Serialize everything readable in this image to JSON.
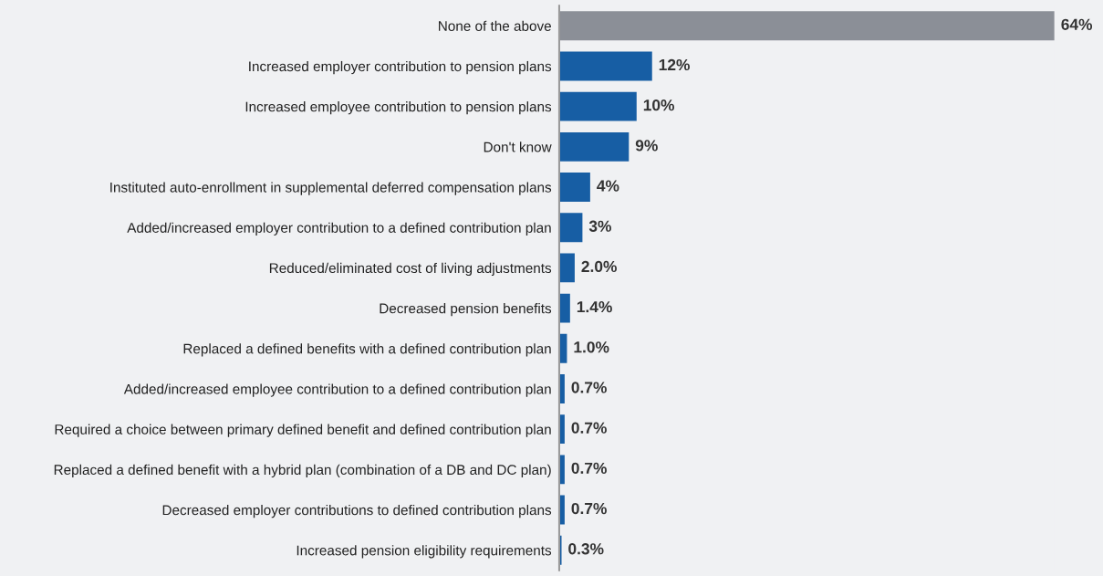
{
  "chart_data": {
    "type": "bar",
    "orientation": "horizontal",
    "categories": [
      "None of the above",
      "Increased employer contribution to pension plans",
      "Increased employee contribution to pension plans",
      "Don't know",
      "Instituted auto-enrollment in supplemental deferred compensation plans",
      "Added/increased employer contribution to a defined contribution plan",
      "Reduced/eliminated cost of living adjustments",
      "Decreased pension benefits",
      "Replaced a defined benefits with a defined contribution plan",
      "Added/increased employee contribution to a defined contribution plan",
      "Required a choice between primary defined benefit and defined contribution plan",
      "Replaced a defined benefit with a hybrid plan (combination of a DB and DC plan)",
      "Decreased employer contributions to defined contribution plans",
      "Increased pension eligibility requirements"
    ],
    "values": [
      64,
      12,
      10,
      9,
      4,
      3,
      2.0,
      1.4,
      1.0,
      0.7,
      0.7,
      0.7,
      0.7,
      0.3
    ],
    "value_labels": [
      "64%",
      "12%",
      "10%",
      "9%",
      "4%",
      "3%",
      "2.0%",
      "1.4%",
      "1.0%",
      "0.7%",
      "0.7%",
      "0.7%",
      "0.7%",
      "0.3%"
    ],
    "colors": [
      "#8b8f97",
      "#175ea4",
      "#175ea4",
      "#175ea4",
      "#175ea4",
      "#175ea4",
      "#175ea4",
      "#175ea4",
      "#175ea4",
      "#175ea4",
      "#175ea4",
      "#175ea4",
      "#175ea4",
      "#175ea4"
    ],
    "grid": false,
    "legend": false
  }
}
